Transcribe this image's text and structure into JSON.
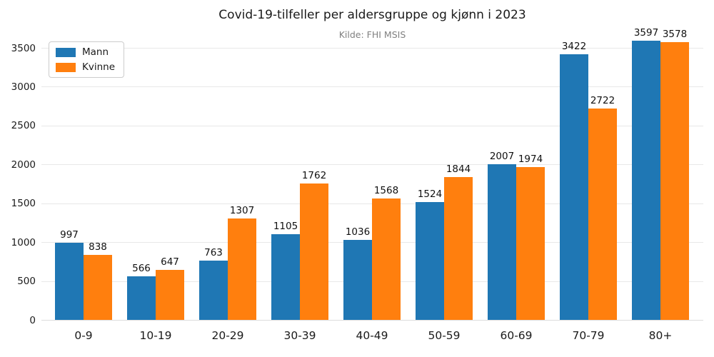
{
  "header": {
    "title": "Covid-19-tilfeller per aldersgruppe og kjønn i 2023",
    "subtitle": "Kilde: FHI MSIS"
  },
  "legend": {
    "position": "upper left",
    "items": [
      {
        "label": "Mann",
        "color": "#1f77b4"
      },
      {
        "label": "Kvinne",
        "color": "#ff7f0e"
      }
    ]
  },
  "colors": {
    "mann": "#1f77b4",
    "kvinne": "#ff7f0e",
    "grid": "#e8e8e8",
    "text": "#1a1a1a",
    "subtitle_text": "#808080",
    "background": "#ffffff"
  },
  "chart_data": {
    "type": "bar",
    "title": "Covid-19-tilfeller per aldersgruppe og kjønn i 2023",
    "subtitle": "Kilde: FHI MSIS",
    "categories": [
      "0-9",
      "10-19",
      "20-29",
      "30-39",
      "40-49",
      "50-59",
      "60-69",
      "70-79",
      "80+"
    ],
    "series": [
      {
        "name": "Mann",
        "color": "#1f77b4",
        "values": [
          997,
          566,
          763,
          1105,
          1036,
          1524,
          2007,
          3422,
          3597
        ]
      },
      {
        "name": "Kvinne",
        "color": "#ff7f0e",
        "values": [
          838,
          647,
          1307,
          1762,
          1568,
          1844,
          1974,
          2722,
          3578
        ]
      }
    ],
    "xlabel": "",
    "ylabel": "",
    "ylim": [
      0,
      3700
    ],
    "yticks": [
      0,
      500,
      1000,
      1500,
      2000,
      2500,
      3000,
      3500
    ],
    "grid": true,
    "grid_axis": "y",
    "bar_value_labels": true,
    "legend_position": "upper left"
  }
}
